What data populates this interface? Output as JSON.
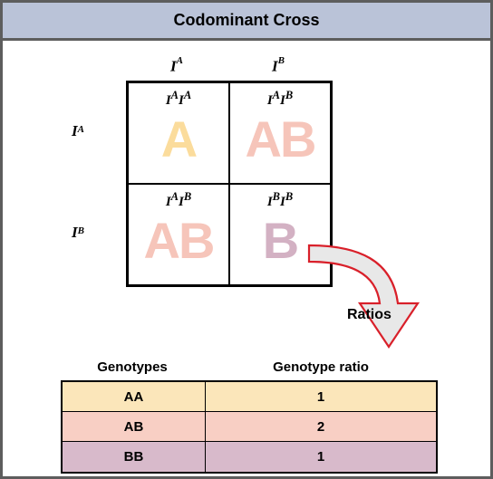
{
  "title": "Codominant Cross",
  "alleles": {
    "colTop": [
      {
        "base": "I",
        "sup": "A"
      },
      {
        "base": "I",
        "sup": "B"
      }
    ],
    "rowSide": [
      {
        "base": "I",
        "sup": "A"
      },
      {
        "base": "I",
        "sup": "B"
      }
    ]
  },
  "cells": [
    {
      "genoHtml": "I<sup>A</sup>I<sup>A</sup>",
      "pheno": "A",
      "color": "#fbdc9c"
    },
    {
      "genoHtml": "I<sup>A</sup>I<sup>B</sup>",
      "pheno": "AB",
      "color": "#f6c5ba"
    },
    {
      "genoHtml": "I<sup>A</sup>I<sup>B</sup>",
      "pheno": "AB",
      "color": "#f6c5ba"
    },
    {
      "genoHtml": "I<sup>B</sup>I<sup>B</sup>",
      "pheno": "B",
      "color": "#d3b1c3"
    }
  ],
  "arrow": {
    "label": "Ratios",
    "stroke": "#d9202a",
    "fill": "#e8e8e8"
  },
  "ratioHeaders": {
    "col1": "Genotypes",
    "col2": "Genotype ratio"
  },
  "ratioRows": [
    {
      "g": "AA",
      "r": "1",
      "bg": "#fbe6ba"
    },
    {
      "g": "AB",
      "r": "2",
      "bg": "#f8cfc4"
    },
    {
      "g": "BB",
      "r": "1",
      "bg": "#d8bacb"
    }
  ],
  "frame_border": "#5d5d5d",
  "titlebar_bg": "#bac3d8"
}
